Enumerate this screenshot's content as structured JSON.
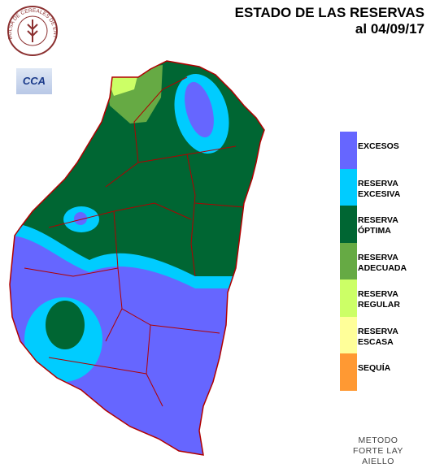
{
  "header": {
    "title": "ESTADO DE LAS RESERVAS",
    "date": "al 04/09/17"
  },
  "logos": {
    "institution": "BOLSA DE CEREALES DE ENTRE RIOS",
    "badge": "CCA"
  },
  "legend": [
    {
      "label": "EXCESOS",
      "color": "#6666ff"
    },
    {
      "label": "RESERVA EXCESIVA",
      "color": "#00ccff"
    },
    {
      "label": "RESERVA ÓPTIMA",
      "color": "#006633"
    },
    {
      "label": "RESERVA ADECUADA",
      "color": "#66aa44"
    },
    {
      "label": "RESERVA REGULAR",
      "color": "#ccff66"
    },
    {
      "label": "RESERVA ESCASA",
      "color": "#ffff99"
    },
    {
      "label": "SEQUÍA",
      "color": "#ff9933"
    }
  ],
  "footer": {
    "method": "METODO FORTE LAY AIELLO"
  }
}
